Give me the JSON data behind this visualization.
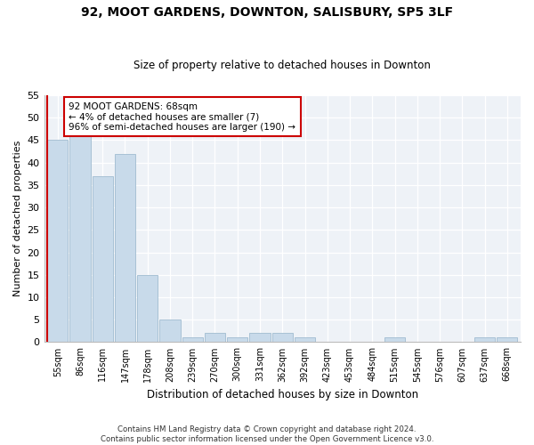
{
  "title1": "92, MOOT GARDENS, DOWNTON, SALISBURY, SP5 3LF",
  "title2": "Size of property relative to detached houses in Downton",
  "xlabel": "Distribution of detached houses by size in Downton",
  "ylabel": "Number of detached properties",
  "footnote1": "Contains HM Land Registry data © Crown copyright and database right 2024.",
  "footnote2": "Contains public sector information licensed under the Open Government Licence v3.0.",
  "annotation_line1": "92 MOOT GARDENS: 68sqm",
  "annotation_line2": "← 4% of detached houses are smaller (7)",
  "annotation_line3": "96% of semi-detached houses are larger (190) →",
  "bar_color": "#c8daea",
  "bar_edge_color": "#a0bcd0",
  "highlight_line_color": "#cc0000",
  "categories": [
    "55sqm",
    "86sqm",
    "116sqm",
    "147sqm",
    "178sqm",
    "208sqm",
    "239sqm",
    "270sqm",
    "300sqm",
    "331sqm",
    "362sqm",
    "392sqm",
    "423sqm",
    "453sqm",
    "484sqm",
    "515sqm",
    "545sqm",
    "576sqm",
    "607sqm",
    "637sqm",
    "668sqm"
  ],
  "values": [
    45,
    46,
    37,
    42,
    15,
    5,
    1,
    2,
    1,
    2,
    2,
    1,
    0,
    0,
    0,
    1,
    0,
    0,
    0,
    1,
    1
  ],
  "ylim": [
    0,
    55
  ],
  "yticks": [
    0,
    5,
    10,
    15,
    20,
    25,
    30,
    35,
    40,
    45,
    50,
    55
  ],
  "background_color": "#ffffff",
  "plot_background": "#eef2f7"
}
